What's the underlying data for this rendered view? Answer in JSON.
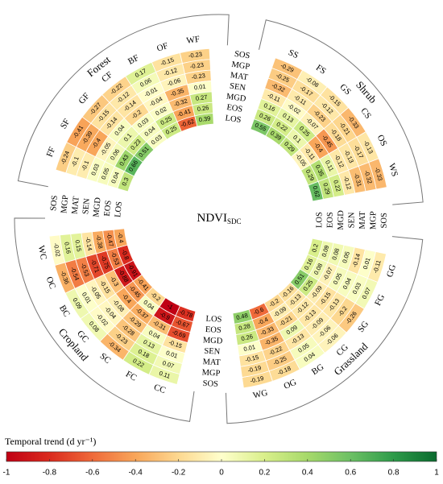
{
  "chart_data": {
    "type": "radial_heatmap",
    "center_label": "NDVI",
    "center_subscript": "SDC",
    "rows": [
      "SOS",
      "MGP",
      "MAT",
      "SEN",
      "MGD",
      "EOS",
      "LOS"
    ],
    "groups": [
      {
        "name": "Forest",
        "categories": [
          "FF",
          "SF",
          "GF",
          "CF",
          "BF",
          "OF",
          "WF"
        ],
        "values": [
          [
            -0.24,
            -0.1,
            -0.1,
            0.03,
            0.05,
            0.04,
            0.3
          ],
          [
            -0.41,
            -0.39,
            -0.4,
            -0.05,
            0.06,
            0.43,
            0.66
          ],
          [
            -0.27,
            -0.15,
            -0.14,
            0.04,
            0.1,
            0.23,
            0.51
          ],
          [
            -0.22,
            -0.12,
            -0.14,
            -0.2,
            0.03,
            0.04,
            0.03
          ],
          [
            0.17,
            0.06,
            -0.01,
            -0.04,
            0.02,
            0.25,
            0.25
          ],
          [
            -0.15,
            -0.12,
            -0.06,
            -0.35,
            -0.32,
            -0.41,
            -0.62
          ],
          [
            -0.23,
            -0.23,
            -0.23,
            0.01,
            0.27,
            0.26,
            0.39
          ]
        ]
      },
      {
        "name": "Shrub",
        "categories": [
          "SS",
          "FS",
          "GS",
          "CS",
          "OS",
          "WS"
        ],
        "values": [
          [
            -0.29,
            -0.25,
            -0.32,
            -0.11,
            0.16,
            0.26,
            0.55
          ],
          [
            -0.08,
            -0.17,
            -0.11,
            -0.02,
            0.13,
            0.22,
            0.39
          ],
          [
            -0.15,
            -0.12,
            -0.23,
            -0.07,
            0.25,
            0.1,
            0.29
          ],
          [
            -0.33,
            -0.21,
            -0.18,
            -0.45,
            -0.4,
            -0.11,
            -0.05
          ],
          [
            -0.13,
            -0.17,
            -0.13,
            -0.12,
            0.11,
            0.35,
            0.29
          ],
          [
            -0.33,
            -0.32,
            -0.31,
            -0.12,
            0.22,
            0.29,
            0.62
          ]
        ]
      },
      {
        "name": "Grassland",
        "categories": [
          "GG",
          "FG",
          "SG",
          "CG",
          "BG",
          "OG",
          "WG"
        ],
        "values": [
          [
            -0.11,
            0.01,
            -0.14,
            0.05,
            0.08,
            0.09,
            0.2
          ],
          [
            0.07,
            0.03,
            0.04,
            0.05,
            -0.07,
            0.08,
            0.16
          ],
          [
            -0.26,
            -0.2,
            -0.13,
            -0.15,
            -0.09,
            0.25,
            0.51
          ],
          [
            -0.06,
            -0.06,
            -0.09,
            -0.13,
            -0.12,
            -0.13,
            -0.16
          ],
          [
            0.04,
            0.05,
            -0.13,
            0.09,
            -0.21,
            -0.09,
            -0.2
          ],
          [
            -0.18,
            -0.25,
            -0.22,
            -0.35,
            -0.33,
            -0.4,
            -0.6
          ],
          [
            -0.19,
            -0.19,
            -0.15,
            0.01,
            0.26,
            0.28,
            0.48
          ]
        ]
      },
      {
        "name": "Cropland",
        "categories": [
          "CC",
          "FC",
          "SC",
          "GC",
          "BC",
          "OC",
          "WC"
        ],
        "values": [
          [
            0.11,
            0.07,
            0.01,
            -0.15,
            -0.69,
            -0.67,
            -0.78
          ],
          [
            0.22,
            0.18,
            0.13,
            0.04,
            -0.31,
            -0.9,
            -1
          ],
          [
            -0.34,
            -0.23,
            -0.28,
            -0.29,
            -0.37,
            0.04,
            -0.2
          ],
          [
            0.08,
            -0.02,
            -0.04,
            -0.08,
            -0.4,
            -0.45,
            -0.41
          ],
          [
            0.09,
            0.01,
            -0.05,
            -0.15,
            -0.3,
            -0.88,
            -0.91
          ],
          [
            -0.36,
            -0.54,
            -0.53,
            -0.71,
            -0.75,
            -0.53,
            -0.8
          ],
          [
            -0.02,
            0.16,
            0.15,
            -0.14,
            -0.38,
            -0.47,
            -0.4
          ]
        ]
      }
    ],
    "colorbar": {
      "label": "Temporal trend (d yr⁻¹)",
      "lim": [
        -1,
        1
      ],
      "ticks": [
        -1,
        -0.8,
        -0.6,
        -0.4,
        -0.2,
        0,
        0.2,
        0.4,
        0.6,
        0.8,
        1
      ],
      "colors": [
        "#c00014",
        "#da2a1e",
        "#ef6a3a",
        "#f8a65a",
        "#fdd890",
        "#ffffcc",
        "#d9ef8b",
        "#a6d96a",
        "#6cc064",
        "#2e9b4a",
        "#0a6a2e"
      ]
    }
  }
}
